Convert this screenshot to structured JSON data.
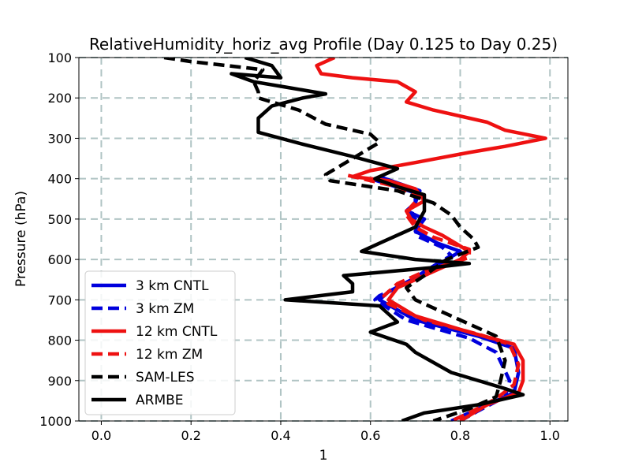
{
  "chart_data": {
    "type": "line",
    "title": "RelativeHumidity_horiz_avg Profile (Day 0.125 to Day 0.25)",
    "xlabel": "1",
    "ylabel": "Pressure (hPa)",
    "xlim": [
      -0.05,
      1.04
    ],
    "ylim": [
      100,
      1000
    ],
    "y_inverted": true,
    "x_ticks": [
      0.0,
      0.2,
      0.4,
      0.6,
      0.8,
      1.0
    ],
    "x_tick_labels": [
      "0.0",
      "0.2",
      "0.4",
      "0.6",
      "0.8",
      "1.0"
    ],
    "y_ticks": [
      100,
      200,
      300,
      400,
      500,
      600,
      700,
      800,
      900,
      1000
    ],
    "y_tick_labels": [
      "100",
      "200",
      "300",
      "400",
      "500",
      "600",
      "700",
      "800",
      "900",
      "1000"
    ],
    "grid": true,
    "legend_position": "lower-left",
    "series": [
      {
        "name": "3 km CNTL",
        "color": "#0000dd",
        "dash": "solid",
        "points": [
          [
            0.62,
            395
          ],
          [
            0.71,
            430
          ],
          [
            0.7,
            460
          ],
          [
            0.68,
            480
          ],
          [
            0.72,
            500
          ],
          [
            0.7,
            530
          ],
          [
            0.75,
            560
          ],
          [
            0.8,
            580
          ],
          [
            0.74,
            620
          ],
          [
            0.7,
            645
          ],
          [
            0.64,
            680
          ],
          [
            0.62,
            700
          ],
          [
            0.7,
            750
          ],
          [
            0.84,
            790
          ],
          [
            0.92,
            820
          ],
          [
            0.93,
            880
          ],
          [
            0.92,
            930
          ],
          [
            0.85,
            965
          ],
          [
            0.78,
            1000
          ]
        ]
      },
      {
        "name": "3 km ZM",
        "color": "#0000dd",
        "dash": "dashed",
        "points": [
          [
            0.6,
            400
          ],
          [
            0.7,
            435
          ],
          [
            0.7,
            465
          ],
          [
            0.69,
            490
          ],
          [
            0.71,
            510
          ],
          [
            0.7,
            540
          ],
          [
            0.76,
            570
          ],
          [
            0.78,
            590
          ],
          [
            0.72,
            630
          ],
          [
            0.68,
            660
          ],
          [
            0.62,
            690
          ],
          [
            0.61,
            700
          ],
          [
            0.68,
            750
          ],
          [
            0.82,
            795
          ],
          [
            0.88,
            830
          ],
          [
            0.91,
            900
          ],
          [
            0.9,
            940
          ],
          [
            0.84,
            975
          ],
          [
            0.8,
            1000
          ]
        ]
      },
      {
        "name": "12 km CNTL",
        "color": "#ee1111",
        "dash": "solid",
        "points": [
          [
            0.52,
            100
          ],
          [
            0.48,
            120
          ],
          [
            0.49,
            140
          ],
          [
            0.56,
            150
          ],
          [
            0.66,
            160
          ],
          [
            0.7,
            185
          ],
          [
            0.68,
            210
          ],
          [
            0.74,
            230
          ],
          [
            0.86,
            260
          ],
          [
            0.9,
            280
          ],
          [
            0.99,
            300
          ],
          [
            0.9,
            320
          ],
          [
            0.82,
            335
          ],
          [
            0.7,
            360
          ],
          [
            0.6,
            380
          ],
          [
            0.56,
            395
          ],
          [
            0.64,
            405
          ],
          [
            0.7,
            425
          ],
          [
            0.72,
            455
          ],
          [
            0.68,
            480
          ],
          [
            0.69,
            500
          ],
          [
            0.72,
            520
          ],
          [
            0.76,
            540
          ],
          [
            0.82,
            580
          ],
          [
            0.8,
            600
          ],
          [
            0.72,
            640
          ],
          [
            0.66,
            670
          ],
          [
            0.64,
            700
          ],
          [
            0.7,
            740
          ],
          [
            0.82,
            780
          ],
          [
            0.92,
            810
          ],
          [
            0.94,
            850
          ],
          [
            0.94,
            900
          ],
          [
            0.93,
            930
          ],
          [
            0.86,
            960
          ],
          [
            0.8,
            1000
          ]
        ]
      },
      {
        "name": "12 km ZM",
        "color": "#ee1111",
        "dash": "dashed",
        "points": [
          [
            0.55,
            392
          ],
          [
            0.66,
            420
          ],
          [
            0.71,
            445
          ],
          [
            0.69,
            470
          ],
          [
            0.68,
            490
          ],
          [
            0.7,
            520
          ],
          [
            0.74,
            545
          ],
          [
            0.82,
            575
          ],
          [
            0.82,
            595
          ],
          [
            0.72,
            630
          ],
          [
            0.66,
            660
          ],
          [
            0.63,
            690
          ],
          [
            0.64,
            710
          ],
          [
            0.72,
            750
          ],
          [
            0.84,
            785
          ],
          [
            0.91,
            810
          ],
          [
            0.93,
            860
          ],
          [
            0.92,
            910
          ],
          [
            0.88,
            945
          ],
          [
            0.82,
            980
          ],
          [
            0.78,
            1000
          ]
        ]
      },
      {
        "name": "SAM-LES",
        "color": "#000000",
        "dash": "dashed",
        "points": [
          [
            0.14,
            100
          ],
          [
            0.2,
            110
          ],
          [
            0.28,
            120
          ],
          [
            0.36,
            130
          ],
          [
            0.34,
            160
          ],
          [
            0.35,
            185
          ],
          [
            0.35,
            200
          ],
          [
            0.44,
            230
          ],
          [
            0.5,
            265
          ],
          [
            0.6,
            290
          ],
          [
            0.62,
            310
          ],
          [
            0.56,
            350
          ],
          [
            0.5,
            390
          ],
          [
            0.51,
            405
          ],
          [
            0.66,
            430
          ],
          [
            0.74,
            460
          ],
          [
            0.78,
            490
          ],
          [
            0.8,
            520
          ],
          [
            0.83,
            550
          ],
          [
            0.84,
            570
          ],
          [
            0.77,
            600
          ],
          [
            0.72,
            640
          ],
          [
            0.68,
            670
          ],
          [
            0.7,
            700
          ],
          [
            0.78,
            740
          ],
          [
            0.88,
            790
          ],
          [
            0.9,
            850
          ],
          [
            0.89,
            900
          ],
          [
            0.88,
            940
          ],
          [
            0.82,
            970
          ],
          [
            0.74,
            1000
          ]
        ]
      },
      {
        "name": "ARMBE",
        "color": "#000000",
        "dash": "solid",
        "points": [
          [
            0.32,
            100
          ],
          [
            0.38,
            120
          ],
          [
            0.4,
            150
          ],
          [
            0.29,
            140
          ],
          [
            0.34,
            160
          ],
          [
            0.42,
            175
          ],
          [
            0.5,
            190
          ],
          [
            0.45,
            200
          ],
          [
            0.38,
            220
          ],
          [
            0.35,
            250
          ],
          [
            0.35,
            285
          ],
          [
            0.45,
            315
          ],
          [
            0.56,
            345
          ],
          [
            0.66,
            375
          ],
          [
            0.61,
            400
          ],
          [
            0.66,
            420
          ],
          [
            0.72,
            440
          ],
          [
            0.72,
            480
          ],
          [
            0.7,
            520
          ],
          [
            0.62,
            560
          ],
          [
            0.58,
            580
          ],
          [
            0.7,
            600
          ],
          [
            0.82,
            610
          ],
          [
            0.74,
            620
          ],
          [
            0.54,
            640
          ],
          [
            0.56,
            660
          ],
          [
            0.56,
            680
          ],
          [
            0.41,
            700
          ],
          [
            0.62,
            715
          ],
          [
            0.66,
            755
          ],
          [
            0.6,
            780
          ],
          [
            0.68,
            810
          ],
          [
            0.7,
            830
          ],
          [
            0.78,
            880
          ],
          [
            0.9,
            920
          ],
          [
            0.94,
            935
          ],
          [
            0.84,
            960
          ],
          [
            0.72,
            980
          ],
          [
            0.67,
            1000
          ]
        ]
      }
    ]
  }
}
